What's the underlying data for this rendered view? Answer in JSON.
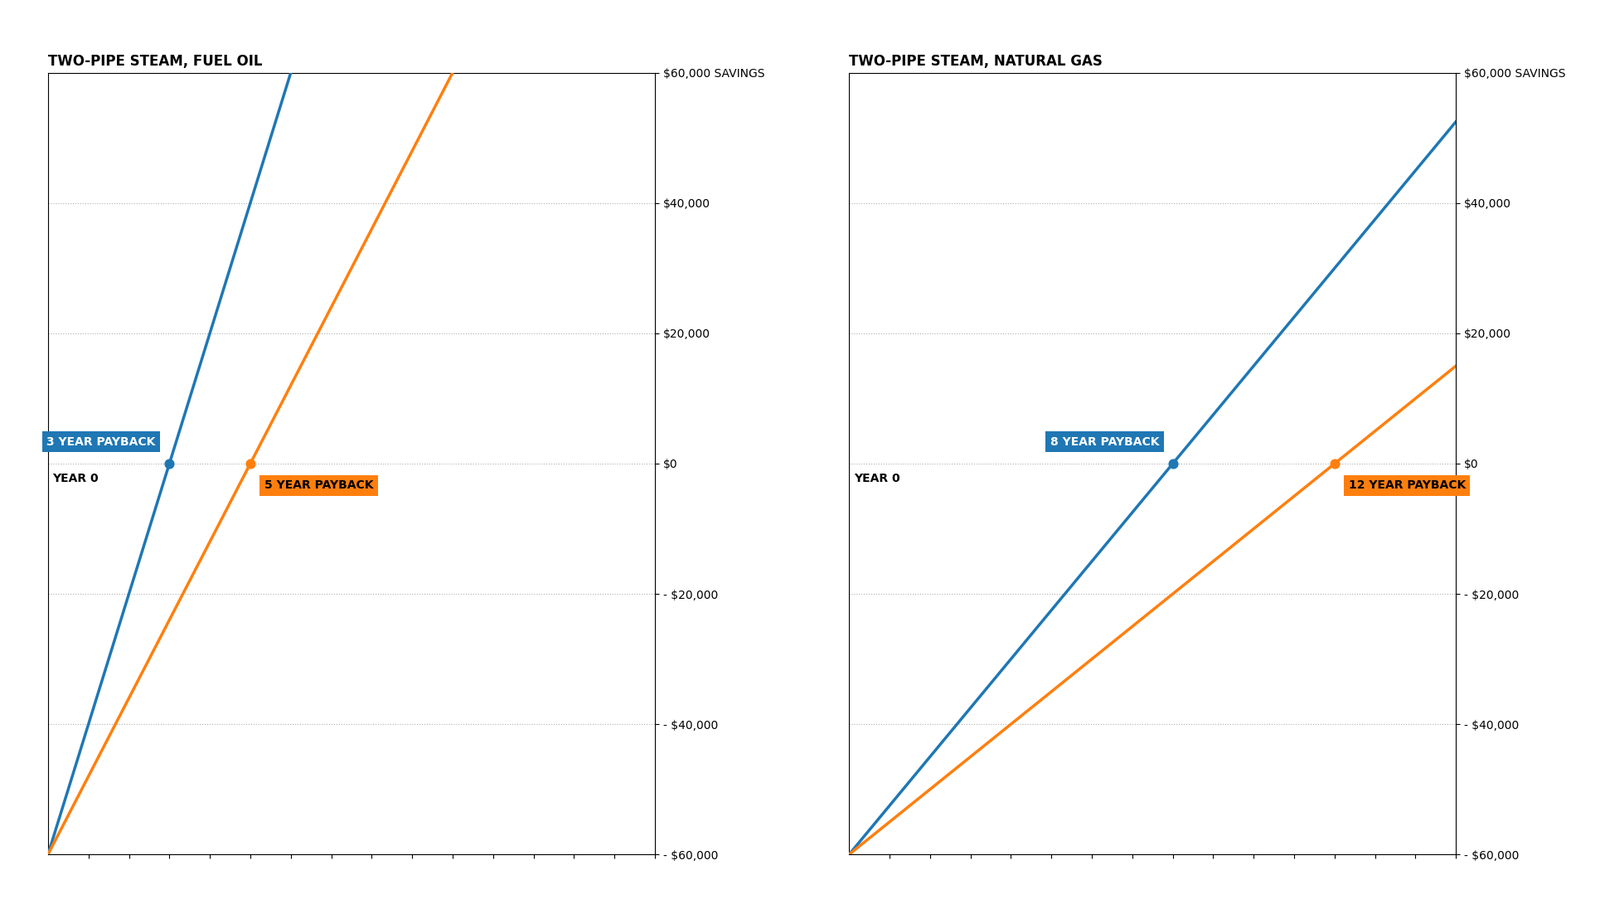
{
  "chart_data": [
    {
      "type": "line",
      "title": "TWO-PIPE STEAM, FUEL OIL",
      "xlim": [
        0,
        15
      ],
      "xticks": [
        1,
        2,
        3,
        4,
        5,
        6,
        7,
        8,
        9,
        10,
        11,
        12,
        13,
        14,
        15
      ],
      "ylim": [
        -60000,
        60000
      ],
      "yticks": [
        {
          "value": -60000,
          "label": "- $60,000"
        },
        {
          "value": -40000,
          "label": "- $40,000"
        },
        {
          "value": -20000,
          "label": "- $20,000"
        },
        {
          "value": 0,
          "label": "$0"
        },
        {
          "value": 20000,
          "label": "$20,000"
        },
        {
          "value": 40000,
          "label": "$40,000"
        },
        {
          "value": 60000,
          "label": "$60,000 SAVINGS"
        }
      ],
      "grid": true,
      "tick_labels": "y",
      "series": [
        {
          "name": "3 YEAR PAYBACK",
          "x": [
            0,
            3,
            6
          ],
          "values": [
            -60000,
            0,
            60000
          ]
        },
        {
          "name": "5 YEAR PAYBACK",
          "x": [
            0,
            5,
            10
          ],
          "values": [
            -60000,
            0,
            60000
          ]
        }
      ],
      "annotations": [
        {
          "text": "YEAR 0",
          "x": 0,
          "y": 0
        }
      ]
    },
    {
      "type": "line",
      "title": "TWO-PIPE STEAM, NATURAL GAS",
      "xlim": [
        0,
        15
      ],
      "xticks": [
        1,
        2,
        3,
        4,
        5,
        6,
        7,
        8,
        9,
        10,
        11,
        12,
        13,
        14,
        15
      ],
      "ylim": [
        -60000,
        60000
      ],
      "yticks": [
        {
          "value": -60000,
          "label": "- $60,000"
        },
        {
          "value": -40000,
          "label": "- $40,000"
        },
        {
          "value": -20000,
          "label": "- $20,000"
        },
        {
          "value": 0,
          "label": "$0"
        },
        {
          "value": 20000,
          "label": "$20,000"
        },
        {
          "value": 40000,
          "label": "$40,000"
        },
        {
          "value": 60000,
          "label": "$60,000 SAVINGS"
        }
      ],
      "grid": true,
      "tick_labels": "y",
      "series": [
        {
          "name": "8 YEAR PAYBACK",
          "x": [
            0,
            8,
            15
          ],
          "values": [
            -60000,
            0,
            52500
          ]
        },
        {
          "name": "12 YEAR PAYBACK",
          "x": [
            0,
            12,
            15
          ],
          "values": [
            -60000,
            0,
            15000
          ]
        }
      ],
      "annotations": [
        {
          "text": "YEAR 0",
          "x": 0,
          "y": 0
        }
      ]
    }
  ]
}
